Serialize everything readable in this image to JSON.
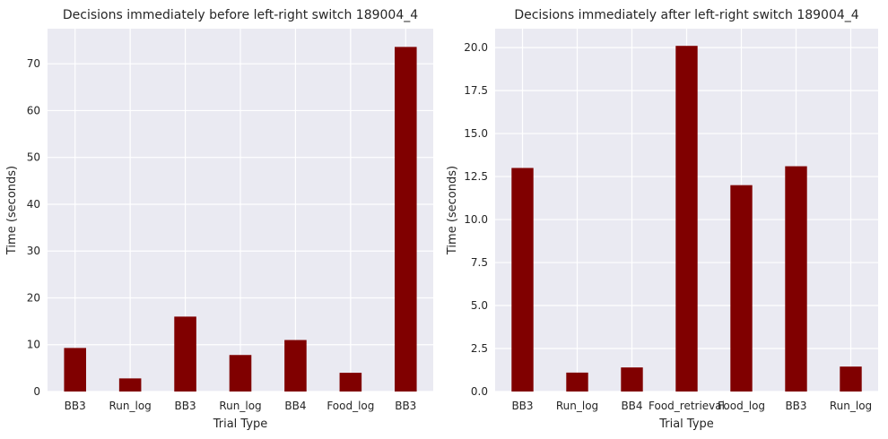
{
  "chart_data": [
    {
      "type": "bar",
      "title": "Decisions immediately before left-right switch 189004_4",
      "xlabel": "Trial Type",
      "ylabel": "Time (seconds)",
      "categories": [
        "BB3",
        "Run_log",
        "BB3",
        "Run_log",
        "BB4",
        "Food_log",
        "BB3"
      ],
      "values": [
        9.3,
        2.8,
        16.0,
        7.8,
        11.0,
        4.0,
        73.6
      ],
      "ylim": [
        0,
        77.5
      ],
      "yticks": [
        0,
        10,
        20,
        30,
        40,
        50,
        60,
        70
      ],
      "ytick_labels": [
        "0",
        "10",
        "20",
        "30",
        "40",
        "50",
        "60",
        "70"
      ],
      "grid": true,
      "bar_color": "#800000",
      "background": "#eaeaf2"
    },
    {
      "type": "bar",
      "title": "Decisions immediately after left-right switch 189004_4",
      "xlabel": "Trial Type",
      "ylabel": "Time (seconds)",
      "categories": [
        "BB3",
        "Run_log",
        "BB4",
        "Food_retrieval",
        "Food_log",
        "BB3",
        "Run_log"
      ],
      "values": [
        13.0,
        1.1,
        1.4,
        20.1,
        12.0,
        13.1,
        1.45
      ],
      "ylim": [
        0,
        21.1
      ],
      "yticks": [
        0,
        2.5,
        5,
        7.5,
        10,
        12.5,
        15,
        17.5,
        20
      ],
      "ytick_labels": [
        "0.0",
        "2.5",
        "5.0",
        "7.5",
        "10.0",
        "12.5",
        "15.0",
        "17.5",
        "20.0"
      ],
      "grid": true,
      "bar_color": "#800000",
      "background": "#eaeaf2"
    }
  ]
}
